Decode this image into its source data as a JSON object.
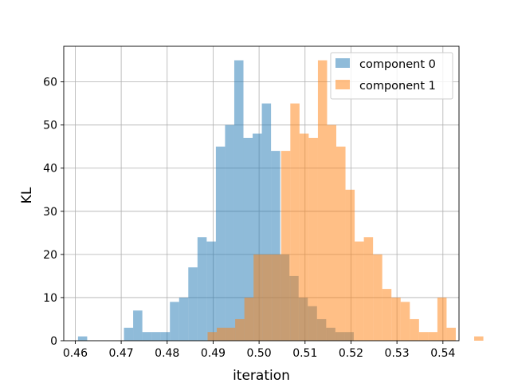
{
  "chart_data": {
    "type": "bar",
    "subtype": "histogram",
    "xlabel": "iteration",
    "ylabel": "KL",
    "xlim": [
      0.4575,
      0.5435
    ],
    "ylim": [
      0,
      68.25
    ],
    "xticks": [
      0.46,
      0.47,
      0.48,
      0.49,
      0.5,
      0.51,
      0.52,
      0.53,
      0.54
    ],
    "xtick_labels": [
      "0.46",
      "0.47",
      "0.48",
      "0.49",
      "0.50",
      "0.51",
      "0.52",
      "0.53",
      "0.54"
    ],
    "yticks": [
      0,
      10,
      20,
      30,
      40,
      50,
      60
    ],
    "ytick_labels": [
      "0",
      "10",
      "20",
      "30",
      "40",
      "50",
      "60"
    ],
    "grid": true,
    "legend_position": "top-right",
    "series": [
      {
        "name": "component 0",
        "color": "#1f77b4",
        "opacity": 0.5,
        "bin_start": 0.4606,
        "bin_width": 0.002,
        "counts": [
          1,
          0,
          0,
          0,
          0,
          3,
          7,
          2,
          2,
          2,
          9,
          10,
          17,
          24,
          23,
          45,
          50,
          65,
          47,
          48,
          55,
          44,
          20,
          15,
          10,
          8,
          5,
          3,
          2,
          2
        ]
      },
      {
        "name": "component 1",
        "color": "#ff7f0e",
        "opacity": 0.5,
        "bin_start": 0.4888,
        "bin_width": 0.002,
        "counts": [
          2,
          3,
          3,
          5,
          10,
          20,
          20,
          20,
          44,
          55,
          48,
          47,
          65,
          50,
          45,
          35,
          23,
          24,
          20,
          12,
          10,
          9,
          5,
          2,
          2,
          10,
          3,
          0,
          0,
          1
        ]
      }
    ]
  }
}
